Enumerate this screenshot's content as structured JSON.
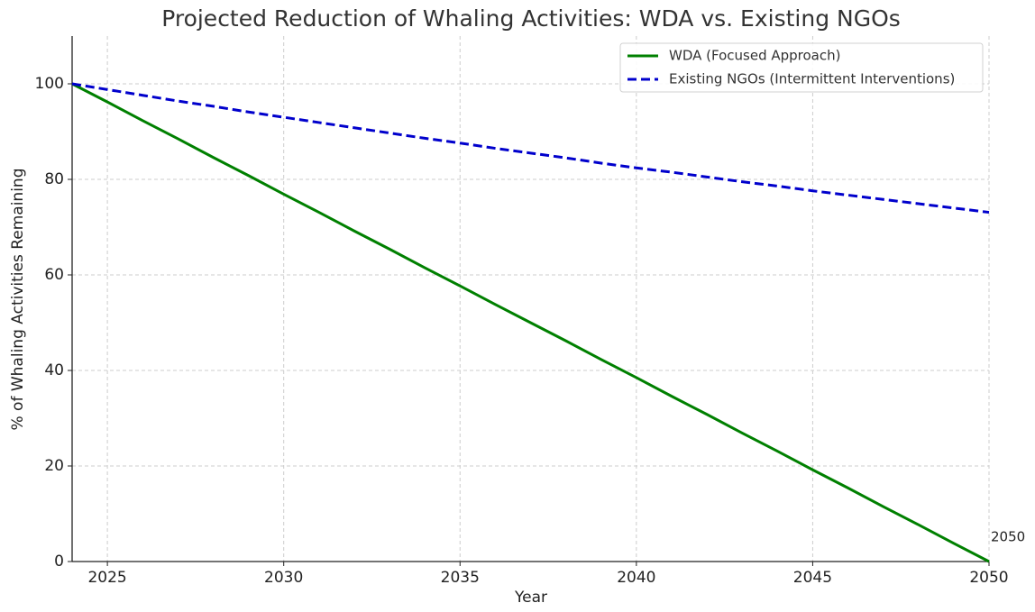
{
  "chart_data": {
    "type": "line",
    "title": "Projected Reduction of Whaling Activities: WDA vs. Existing NGOs",
    "xlabel": "Year",
    "ylabel": "% of Whaling Activities Remaining",
    "x": [
      2024,
      2025,
      2026,
      2027,
      2028,
      2029,
      2030,
      2031,
      2032,
      2033,
      2034,
      2035,
      2036,
      2037,
      2038,
      2039,
      2040,
      2041,
      2042,
      2043,
      2044,
      2045,
      2046,
      2047,
      2048,
      2049,
      2050
    ],
    "series": [
      {
        "name": "WDA (Focused Approach)",
        "color": "#008000",
        "dash": false,
        "values": [
          100,
          96.2,
          92.3,
          88.5,
          84.6,
          80.8,
          76.9,
          73.1,
          69.2,
          65.4,
          61.5,
          57.7,
          53.8,
          50.0,
          46.2,
          42.3,
          38.5,
          34.6,
          30.8,
          26.9,
          23.1,
          19.2,
          15.4,
          11.5,
          7.7,
          3.8,
          0
        ]
      },
      {
        "name": "Existing NGOs (Intermittent Interventions)",
        "color": "#0000cc",
        "dash": true,
        "values": [
          100,
          98.8,
          97.6,
          96.4,
          95.3,
          94.1,
          93.0,
          91.9,
          90.8,
          89.7,
          88.6,
          87.6,
          86.5,
          85.5,
          84.5,
          83.4,
          82.4,
          81.5,
          80.5,
          79.5,
          78.6,
          77.6,
          76.7,
          75.8,
          74.9,
          74.0,
          73.1
        ]
      }
    ],
    "annotations": [
      {
        "text": "2050",
        "x": 2050,
        "y": 0
      }
    ],
    "xlim": [
      2024,
      2050
    ],
    "xticks": [
      2025,
      2030,
      2035,
      2040,
      2045,
      2050
    ],
    "ylim": [
      0,
      110
    ],
    "yticks": [
      0,
      20,
      40,
      60,
      80,
      100
    ],
    "grid": true,
    "legend": "upper right"
  }
}
